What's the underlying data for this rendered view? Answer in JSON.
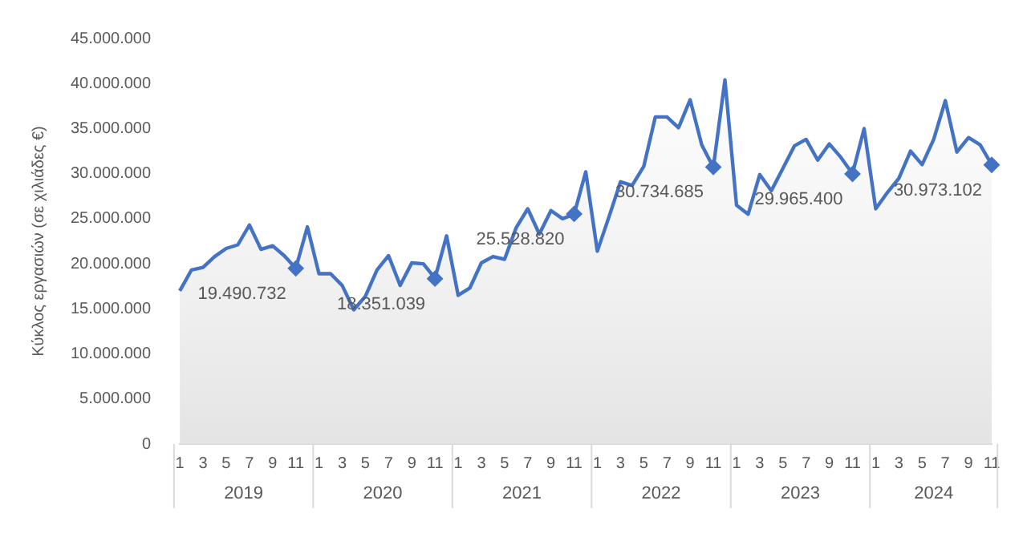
{
  "chart_data": {
    "type": "area",
    "ylabel": "Κύκλος εργασιών (σε χιλιάδες €)",
    "categories": [
      "1",
      null,
      "3",
      null,
      "5",
      null,
      "7",
      null,
      "9",
      null,
      "11",
      null,
      "1",
      null,
      "3",
      null,
      "5",
      null,
      "7",
      null,
      "9",
      null,
      "11",
      null,
      "1",
      null,
      "3",
      null,
      "5",
      null,
      "7",
      null,
      "9",
      null,
      "11",
      null,
      "1",
      null,
      "3",
      null,
      "5",
      null,
      "7",
      null,
      "9",
      null,
      "11",
      null,
      "1",
      null,
      "3",
      null,
      "5",
      null,
      "7",
      null,
      "9",
      null,
      "11",
      null,
      "1",
      null,
      "3",
      null,
      "5",
      null,
      "7",
      null,
      "9",
      null,
      "11"
    ],
    "series": [
      {
        "color": "#4472c4",
        "marker": "none",
        "values": [
          17000000,
          19300000,
          19600000,
          20800000,
          21700000,
          22100000,
          24300000,
          21600000,
          22000000,
          20900000,
          19500000,
          24100000,
          18900000,
          18900000,
          17600000,
          14900000,
          16400000,
          19300000,
          20900000,
          17600000,
          20100000,
          20000000,
          18400000,
          23100000,
          16500000,
          17300000,
          20100000,
          20800000,
          20500000,
          24000000,
          26100000,
          23300000,
          25900000,
          25000000,
          25500000,
          30200000,
          21400000,
          25200000,
          29100000,
          28700000,
          30800000,
          36300000,
          36300000,
          35100000,
          38200000,
          33200000,
          30700000,
          40400000,
          26500000,
          25500000,
          29900000,
          28100000,
          30600000,
          33100000,
          33800000,
          31500000,
          33300000,
          31800000,
          30000000,
          35000000,
          26100000,
          27900000,
          29500000,
          32500000,
          31000000,
          33800000,
          38100000,
          32400000,
          34000000,
          33200000,
          31000000
        ]
      },
      {
        "type": "scatter",
        "color": "#4472c4",
        "values": [
          null,
          null,
          null,
          null,
          null,
          null,
          null,
          null,
          null,
          null,
          19490732,
          null,
          null,
          null,
          null,
          null,
          null,
          null,
          null,
          null,
          null,
          null,
          18351039,
          null,
          null,
          null,
          null,
          null,
          null,
          null,
          null,
          null,
          null,
          null,
          25528820,
          null,
          null,
          null,
          null,
          null,
          null,
          null,
          null,
          null,
          null,
          null,
          30734685,
          null,
          null,
          null,
          null,
          null,
          null,
          null,
          null,
          null,
          null,
          null,
          29965400,
          null,
          null,
          null,
          null,
          null,
          null,
          null,
          null,
          null,
          null,
          null,
          30973102
        ],
        "value_labels": [
          null,
          null,
          null,
          null,
          null,
          null,
          null,
          null,
          null,
          null,
          "19.490.732",
          null,
          null,
          null,
          null,
          null,
          null,
          null,
          null,
          null,
          null,
          null,
          "18.351.039",
          null,
          null,
          null,
          null,
          null,
          null,
          null,
          null,
          null,
          null,
          null,
          "25.528.820",
          null,
          null,
          null,
          null,
          null,
          null,
          null,
          null,
          null,
          null,
          null,
          "30.734.685",
          null,
          null,
          null,
          null,
          null,
          null,
          null,
          null,
          null,
          null,
          null,
          "29.965.400",
          null,
          null,
          null,
          null,
          null,
          null,
          null,
          null,
          null,
          null,
          null,
          "30.973.102"
        ]
      }
    ],
    "ylim": [
      0,
      45000000
    ],
    "yticks": [
      {
        "value": 0,
        "label": "0"
      },
      {
        "value": 5000000,
        "label": "5.000.000"
      },
      {
        "value": 10000000,
        "label": "10.000.000"
      },
      {
        "value": 15000000,
        "label": "15.000.000"
      },
      {
        "value": 20000000,
        "label": "20.000.000"
      },
      {
        "value": 25000000,
        "label": "25.000.000"
      },
      {
        "value": 30000000,
        "label": "30.000.000"
      },
      {
        "value": 35000000,
        "label": "35.000.000"
      },
      {
        "value": 40000000,
        "label": "40.000.000"
      },
      {
        "value": 45000000,
        "label": "45.000.000"
      }
    ],
    "annotations": [
      "2019",
      "2020",
      "2021",
      "2022",
      "2023",
      "2024"
    ],
    "marker": "diamond",
    "grid": false,
    "legend": false
  }
}
